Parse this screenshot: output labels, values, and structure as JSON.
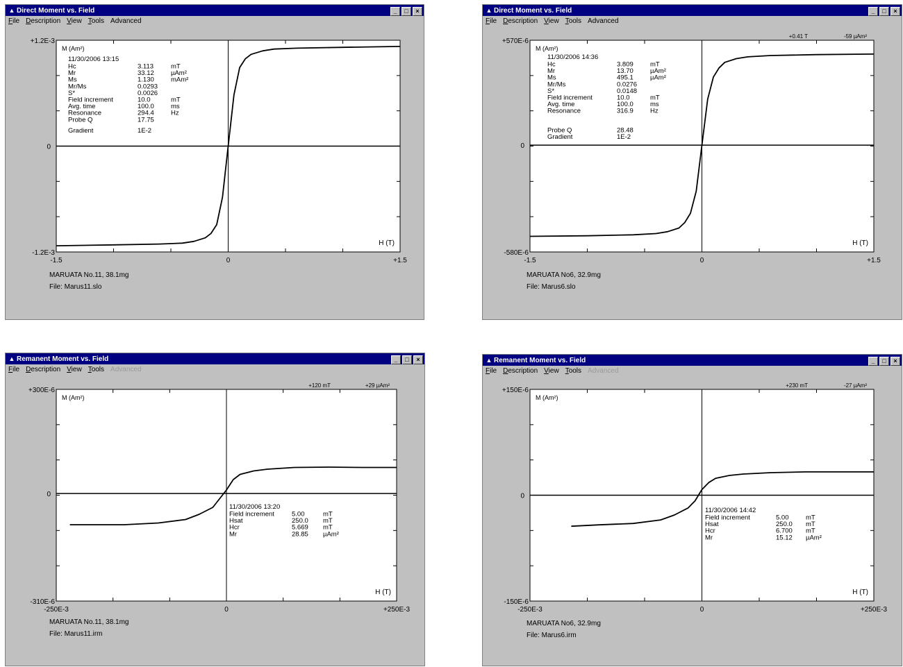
{
  "windows": [
    {
      "title": "Direct Moment vs. Field",
      "menu": [
        {
          "first": "F",
          "rest": "ile"
        },
        {
          "first": "D",
          "rest": "escription"
        },
        {
          "first": "V",
          "rest": "iew"
        },
        {
          "first": "T",
          "rest": "ools"
        },
        {
          "first": "",
          "rest": "Advanced",
          "disabled": false
        }
      ],
      "readout": {
        "field": "",
        "moment": ""
      },
      "axis": {
        "ytop": "+1.2E-3",
        "ybottom": "-1.2E-3",
        "yzero": "0",
        "xleft": "-1.5",
        "xmid": "0",
        "xright": "+1.5",
        "ylabel": "M (Am²)",
        "xlabel": "H (T)"
      },
      "info_rows": [
        {
          "label": "11/30/2006  13:15",
          "value": "",
          "unit": ""
        },
        {
          "label": "Hc",
          "value": "3.113",
          "unit": "mT"
        },
        {
          "label": "Mr",
          "value": "33.12",
          "unit": "µAm²"
        },
        {
          "label": "Ms",
          "value": "1.130",
          "unit": "mAm²"
        },
        {
          "label": "Mr/Ms",
          "value": "0.0293",
          "unit": ""
        },
        {
          "label": "S*",
          "value": "0.0026",
          "unit": ""
        },
        {
          "label": "Field increment",
          "value": "10.0",
          "unit": "mT"
        },
        {
          "label": "Avg. time",
          "value": "100.0",
          "unit": "ms"
        },
        {
          "label": "Resonance",
          "value": "294.4",
          "unit": "Hz"
        },
        {
          "label": "Probe Q",
          "value": "17.75",
          "unit": ""
        },
        {
          "label": "Gradient",
          "value": "1E-2",
          "unit": ""
        }
      ],
      "sample": "MARUATA No.11, 38.1mg",
      "file": "File:  Marus11.slo"
    },
    {
      "title": "Direct Moment vs. Field",
      "menu": [
        {
          "first": "F",
          "rest": "ile"
        },
        {
          "first": "D",
          "rest": "escription"
        },
        {
          "first": "V",
          "rest": "iew"
        },
        {
          "first": "T",
          "rest": "ools"
        },
        {
          "first": "",
          "rest": "Advanced",
          "disabled": false
        }
      ],
      "readout": {
        "field": "+0.41  T",
        "moment": "-59 µAm²"
      },
      "axis": {
        "ytop": "+570E-6",
        "ybottom": "-580E-6",
        "yzero": "0",
        "xleft": "-1.5",
        "xmid": "0",
        "xright": "+1.5",
        "ylabel": "M (Am²)",
        "xlabel": "H (T)"
      },
      "info_rows": [
        {
          "label": "11/30/2006  14:36",
          "value": "",
          "unit": ""
        },
        {
          "label": "Hc",
          "value": "3.809",
          "unit": "mT"
        },
        {
          "label": "Mr",
          "value": "13.70",
          "unit": "µAm²"
        },
        {
          "label": "Ms",
          "value": "495.1",
          "unit": "µAm²"
        },
        {
          "label": "Mr/Ms",
          "value": "0.0276",
          "unit": ""
        },
        {
          "label": "S*",
          "value": "0.0148",
          "unit": ""
        },
        {
          "label": "Field increment",
          "value": "10.0",
          "unit": "mT"
        },
        {
          "label": "Avg. time",
          "value": "100.0",
          "unit": "ms"
        },
        {
          "label": "Resonance",
          "value": "316.9",
          "unit": "Hz"
        },
        {
          "label": "Probe Q",
          "value": "28.48",
          "unit": ""
        },
        {
          "label": "Gradient",
          "value": "1E-2",
          "unit": ""
        }
      ],
      "sample": "MARUATA No6, 32.9mg",
      "file": "File:  Marus6.slo"
    },
    {
      "title": "Remanent Moment vs. Field",
      "menu": [
        {
          "first": "F",
          "rest": "ile"
        },
        {
          "first": "D",
          "rest": "escription"
        },
        {
          "first": "V",
          "rest": "iew"
        },
        {
          "first": "T",
          "rest": "ools"
        },
        {
          "first": "",
          "rest": "Advanced",
          "disabled": true
        }
      ],
      "readout": {
        "field": "+120  mT",
        "moment": "+29 µAm²"
      },
      "axis": {
        "ytop": "+300E-6",
        "ybottom": "-310E-6",
        "yzero": "0",
        "xleft": "-250E-3",
        "xmid": "0",
        "xright": "+250E-3",
        "ylabel": "M (Am²)",
        "xlabel": "H (T)"
      },
      "info_rows": [
        {
          "label": "11/30/2006  13:20",
          "value": "",
          "unit": ""
        },
        {
          "label": "Field increment",
          "value": "5.00",
          "unit": "mT"
        },
        {
          "label": "Hsat",
          "value": "250.0",
          "unit": "mT"
        },
        {
          "label": "Hcr",
          "value": "5.669",
          "unit": "mT"
        },
        {
          "label": "Mr",
          "value": "28.85",
          "unit": "µAm²"
        }
      ],
      "sample": "MARUATA No.11, 38.1mg",
      "file": "File:  Marus11.irm"
    },
    {
      "title": "Remanent Moment vs. Field",
      "menu": [
        {
          "first": "F",
          "rest": "ile"
        },
        {
          "first": "D",
          "rest": "escription"
        },
        {
          "first": "V",
          "rest": "iew"
        },
        {
          "first": "T",
          "rest": "ools"
        },
        {
          "first": "",
          "rest": "Advanced",
          "disabled": true
        }
      ],
      "readout": {
        "field": "+230  mT",
        "moment": "-27 µAm²"
      },
      "axis": {
        "ytop": "+150E-6",
        "ybottom": "-150E-6",
        "yzero": "0",
        "xleft": "-250E-3",
        "xmid": "0",
        "xright": "+250E-3",
        "ylabel": "M (Am²)",
        "xlabel": "H (T)"
      },
      "info_rows": [
        {
          "label": "11/30/2006  14:42",
          "value": "",
          "unit": ""
        },
        {
          "label": "Field increment",
          "value": "5.00",
          "unit": "mT"
        },
        {
          "label": "Hsat",
          "value": "250.0",
          "unit": "mT"
        },
        {
          "label": "Hcr",
          "value": "6.700",
          "unit": "mT"
        },
        {
          "label": "Mr",
          "value": "15.12",
          "unit": "µAm²"
        }
      ],
      "sample": "MARUATA No6, 32.9mg",
      "file": "File:  Marus6.irm"
    }
  ],
  "chart_data": [
    {
      "type": "line",
      "title": "Direct Moment vs. Field",
      "xlabel": "H (T)",
      "ylabel": "M (Am²)",
      "xlim": [
        -1.5,
        1.5
      ],
      "ylim": [
        -0.0012,
        0.0012
      ],
      "series": [
        {
          "x": [
            -1.5,
            -1.0,
            -0.6,
            -0.4,
            -0.3,
            -0.2,
            -0.15,
            -0.1,
            -0.05,
            0.0,
            0.05,
            0.1,
            0.15,
            0.2,
            0.3,
            0.4,
            0.6,
            1.0,
            1.5
          ],
          "y": [
            -0.00113,
            -0.00112,
            -0.00111,
            -0.0011,
            -0.00108,
            -0.00104,
            -0.00099,
            -0.00089,
            -0.00058,
            0.0,
            0.00058,
            0.00089,
            0.00099,
            0.00104,
            0.00108,
            0.0011,
            0.00111,
            0.00112,
            0.00113
          ]
        }
      ],
      "grid": false
    },
    {
      "type": "line",
      "title": "Direct Moment vs. Field",
      "xlabel": "H (T)",
      "ylabel": "M (Am²)",
      "xlim": [
        -1.5,
        1.5
      ],
      "ylim": [
        -0.00058,
        0.00057
      ],
      "series": [
        {
          "x": [
            -1.5,
            -1.0,
            -0.6,
            -0.4,
            -0.3,
            -0.2,
            -0.15,
            -0.1,
            -0.05,
            0.0,
            0.05,
            0.1,
            0.15,
            0.2,
            0.3,
            0.4,
            0.6,
            1.0,
            1.5
          ],
          "y": [
            -0.000495,
            -0.000492,
            -0.000487,
            -0.00048,
            -0.00047,
            -0.00045,
            -0.00042,
            -0.00037,
            -0.00025,
            0.0,
            0.00025,
            0.00037,
            0.00042,
            0.00045,
            0.00047,
            0.00048,
            0.000487,
            0.000492,
            0.000495
          ]
        }
      ],
      "grid": false
    },
    {
      "type": "line",
      "title": "Remanent Moment vs. Field",
      "xlabel": "H (T)",
      "ylabel": "M (Am²)",
      "xlim": [
        -0.25,
        0.25
      ],
      "ylim": [
        -0.00031,
        0.0003
      ],
      "series": [
        {
          "x": [
            -0.23,
            -0.15,
            -0.1,
            -0.06,
            -0.04,
            -0.02,
            -0.01,
            0.0,
            0.01,
            0.02,
            0.04,
            0.06,
            0.1,
            0.15,
            0.2,
            0.25
          ],
          "y": [
            -9e-05,
            -9e-05,
            -8.5e-05,
            -7.5e-05,
            -6e-05,
            -4e-05,
            -1.5e-05,
            1e-05,
            4e-05,
            5.5e-05,
            6.5e-05,
            7e-05,
            7.5e-05,
            7.6e-05,
            7.5e-05,
            7.5e-05
          ]
        }
      ],
      "grid": false
    },
    {
      "type": "line",
      "title": "Remanent Moment vs. Field",
      "xlabel": "H (T)",
      "ylabel": "M (Am²)",
      "xlim": [
        -0.25,
        0.25
      ],
      "ylim": [
        -0.00015,
        0.00015
      ],
      "series": [
        {
          "x": [
            -0.19,
            -0.15,
            -0.1,
            -0.06,
            -0.04,
            -0.02,
            -0.01,
            0.0,
            0.01,
            0.02,
            0.04,
            0.06,
            0.1,
            0.15,
            0.2,
            0.25
          ],
          "y": [
            -4.4e-05,
            -4.2e-05,
            -4e-05,
            -3.5e-05,
            -2.8e-05,
            -1.8e-05,
            -8e-06,
            8e-06,
            1.8e-05,
            2.4e-05,
            2.8e-05,
            3e-05,
            3.2e-05,
            3.3e-05,
            3.3e-05,
            3.3e-05
          ]
        }
      ],
      "grid": false
    }
  ]
}
